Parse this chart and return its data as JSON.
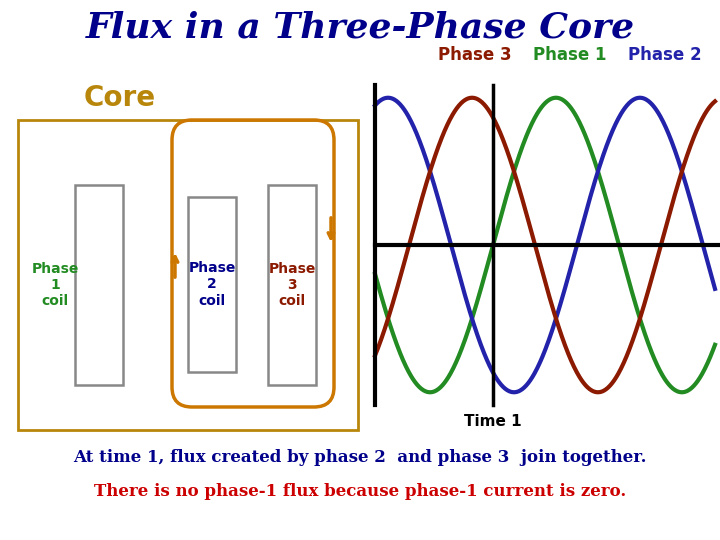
{
  "title": "Flux in a Three-Phase Core",
  "title_color": "#00008B",
  "title_fontsize": 26,
  "core_label": "Core",
  "core_label_color": "#B8860B",
  "core_label_fontsize": 20,
  "phase1_coil_label": "Phase\n1\ncoil",
  "phase2_coil_label": "Phase\n2\ncoil",
  "phase3_coil_label": "Phase\n3\ncoil",
  "phase1_coil_color": "#228B22",
  "phase2_coil_color": "#00008B",
  "phase3_coil_color": "#8B1A00",
  "coil_outline_color": "#B8860B",
  "core_box_color": "#B8860B",
  "inner_rect_color": "#888888",
  "arrow_color": "#CC7700",
  "phase1_legend": "Phase 1",
  "phase2_legend": "Phase 2",
  "phase3_legend": "Phase 3",
  "phase1_wave_color": "#228B22",
  "phase2_wave_color": "#2222AA",
  "phase3_wave_color": "#8B1A00",
  "time1_label": "Time 1",
  "bottom_text1": "At time 1, flux created by phase 2  and phase 3  join together.",
  "bottom_text2": "There is no phase-1 flux because phase-1 current is zero.",
  "bottom_text1_color": "#00008B",
  "bottom_text2_color": "#CC0000",
  "bg_color": "#FFFFFF"
}
